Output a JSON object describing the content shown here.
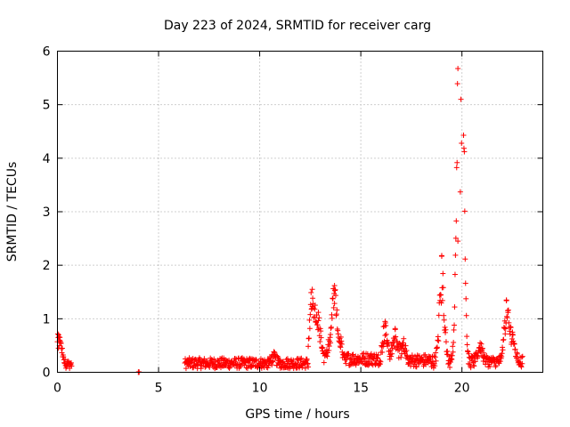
{
  "chart_data": {
    "type": "scatter",
    "title": "Day 223 of 2024, SRMTID for receiver carg",
    "xlabel": "GPS time / hours",
    "ylabel": "SRMTID / TECUs",
    "xlim": [
      0,
      24
    ],
    "ylim": [
      0,
      6
    ],
    "xticks": [
      0,
      5,
      10,
      15,
      20
    ],
    "xtick_labels": [
      "0",
      "5",
      "10",
      "15",
      "20"
    ],
    "yticks": [
      0,
      1,
      2,
      3,
      4,
      5,
      6
    ],
    "ytick_labels": [
      "0",
      "1",
      "2",
      "3",
      "4",
      "5",
      "6"
    ],
    "grid": true,
    "marker": "+",
    "color": "#ff0000",
    "series": [
      {
        "name": "SRMTID",
        "segments": [
          {
            "x_start": 0.0,
            "x_end": 0.7,
            "base": 0.15,
            "noise": 0.08,
            "peaks": [
              [
                0.05,
                0.45
              ],
              [
                0.1,
                0.5
              ]
            ]
          },
          {
            "x_start": 4.0,
            "x_end": 4.05,
            "base": 0.0,
            "noise": 0.01,
            "peaks": []
          },
          {
            "x_start": 6.3,
            "x_end": 12.4,
            "base": 0.17,
            "noise": 0.1,
            "peaks": [
              [
                10.7,
                0.3
              ]
            ]
          },
          {
            "x_start": 12.4,
            "x_end": 15.8,
            "base": 0.25,
            "noise": 0.12,
            "peaks": [
              [
                12.6,
                1.55
              ],
              [
                12.9,
                1.12
              ],
              [
                13.5,
                0.55
              ],
              [
                13.7,
                1.62
              ],
              [
                14.0,
                0.55
              ]
            ]
          },
          {
            "x_start": 15.8,
            "x_end": 18.5,
            "base": 0.22,
            "noise": 0.12,
            "peaks": [
              [
                16.2,
                0.95
              ],
              [
                16.7,
                0.8
              ],
              [
                17.1,
                0.55
              ]
            ]
          },
          {
            "x_start": 18.5,
            "x_end": 20.6,
            "base": 0.2,
            "noise": 0.12,
            "peaks": [
              [
                19.0,
                2.18
              ],
              [
                19.8,
                2.45
              ],
              [
                19.95,
                5.1
              ],
              [
                19.98,
                4.28
              ],
              [
                19.92,
                3.37
              ]
            ]
          },
          {
            "x_start": 20.6,
            "x_end": 23.0,
            "base": 0.2,
            "noise": 0.1,
            "peaks": [
              [
                20.9,
                0.55
              ],
              [
                22.2,
                1.35
              ],
              [
                22.5,
                0.75
              ]
            ]
          }
        ]
      }
    ]
  }
}
